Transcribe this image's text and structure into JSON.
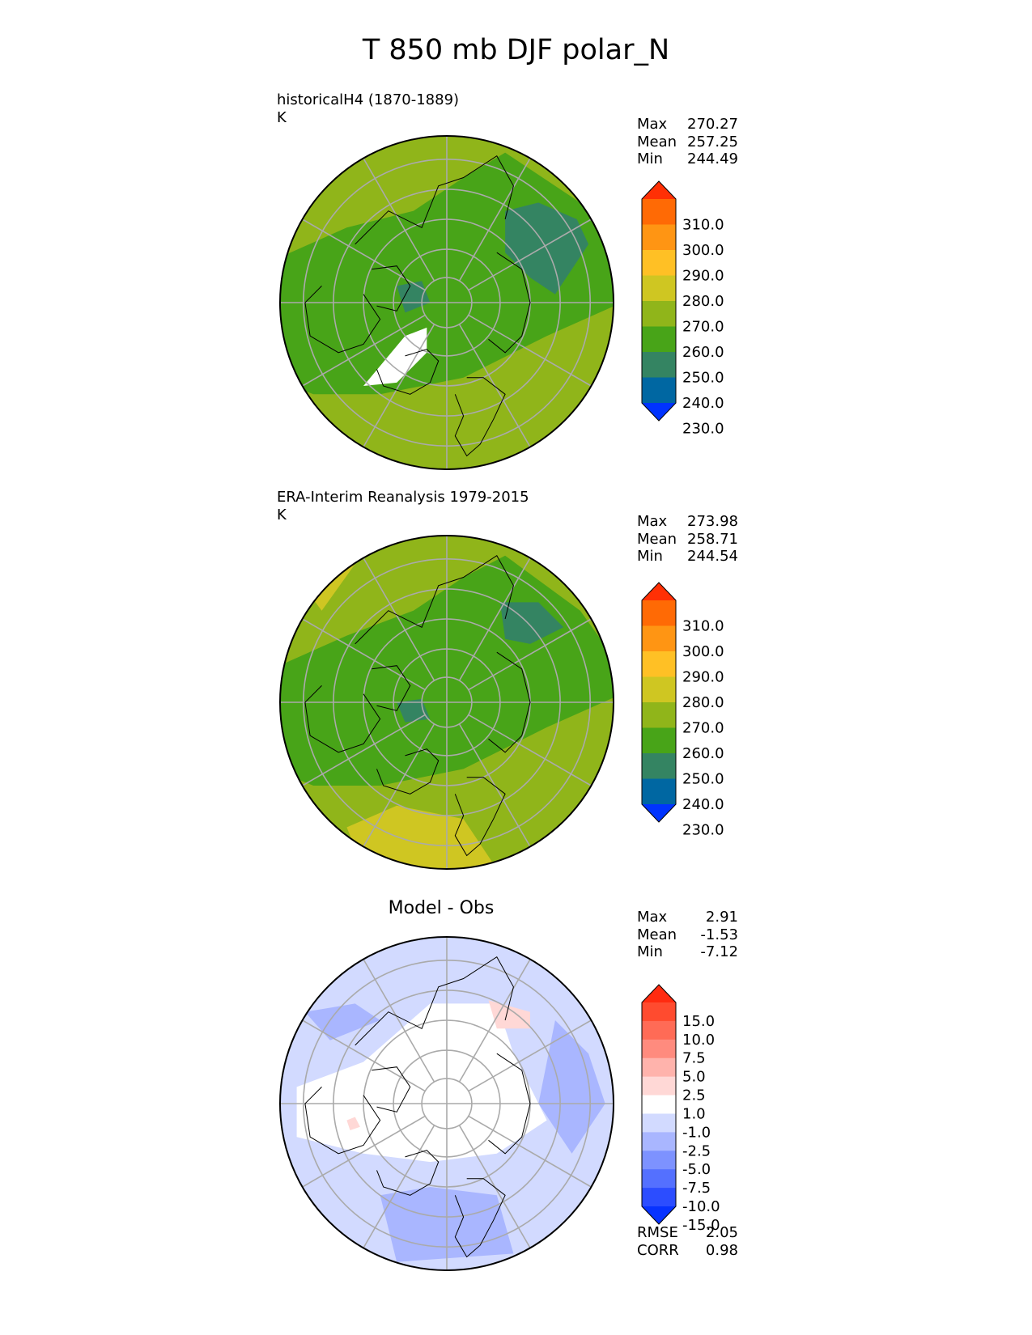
{
  "title": "T 850 mb DJF polar_N",
  "colors": {
    "land_outline": "#000000",
    "grid": "#aaaaaa",
    "abs_levels": [
      "#0033ff",
      "#0067a2",
      "#348462",
      "#48a418",
      "#90b51a",
      "#cfc622",
      "#ffc025",
      "#ff9513",
      "#ff6a05",
      "#ff3005"
    ],
    "diff_levels": [
      "#0732ff",
      "#2c4dff",
      "#5470ff",
      "#7d92ff",
      "#a9b6ff",
      "#d2daff",
      "#ffffff",
      "#ffd8d6",
      "#ffb3ac",
      "#ff8b7e",
      "#ff6b56",
      "#ff4b2f",
      "#ff2b10"
    ]
  },
  "panels": [
    {
      "id": "model",
      "title": "historicalH4 (1870-1889)",
      "units": "K",
      "stats": [
        {
          "label": "Max",
          "value": "270.27"
        },
        {
          "label": "Mean",
          "value": "257.25"
        },
        {
          "label": "Min",
          "value": "244.49"
        }
      ],
      "colorbar_ticks": [
        "310.0",
        "300.0",
        "290.0",
        "280.0",
        "270.0",
        "260.0",
        "250.0",
        "240.0",
        "230.0"
      ]
    },
    {
      "id": "obs",
      "title": "ERA-Interim Reanalysis 1979-2015",
      "units": "K",
      "stats": [
        {
          "label": "Max",
          "value": "273.98"
        },
        {
          "label": "Mean",
          "value": "258.71"
        },
        {
          "label": "Min",
          "value": "244.54"
        }
      ],
      "colorbar_ticks": [
        "310.0",
        "300.0",
        "290.0",
        "280.0",
        "270.0",
        "260.0",
        "250.0",
        "240.0",
        "230.0"
      ]
    },
    {
      "id": "diff",
      "title": "Model - Obs",
      "stats": [
        {
          "label": "Max",
          "value": "2.91"
        },
        {
          "label": "Mean",
          "value": "-1.53"
        },
        {
          "label": "Min",
          "value": "-7.12"
        }
      ],
      "colorbar_ticks": [
        "15.0",
        "10.0",
        "7.5",
        "5.0",
        "2.5",
        "1.0",
        "-1.0",
        "-2.5",
        "-5.0",
        "-7.5",
        "-10.0",
        "-15.0"
      ],
      "metrics": [
        {
          "label": "RMSE",
          "value": "2.05"
        },
        {
          "label": "CORR",
          "value": "0.98"
        }
      ]
    }
  ],
  "chart_data": {
    "type": "heatmap",
    "projection": "north polar stereographic",
    "variable": "T 850 mb",
    "season": "DJF",
    "grid": true,
    "panels": [
      {
        "name": "historicalH4 (1870-1889)",
        "units": "K",
        "max": 270.27,
        "mean": 257.25,
        "min": 244.49,
        "levels": [
          230,
          240,
          250,
          260,
          270,
          280,
          290,
          300,
          310
        ],
        "extend": "both"
      },
      {
        "name": "ERA-Interim Reanalysis 1979-2015",
        "units": "K",
        "max": 273.98,
        "mean": 258.71,
        "min": 244.54,
        "levels": [
          230,
          240,
          250,
          260,
          270,
          280,
          290,
          300,
          310
        ],
        "extend": "both"
      },
      {
        "name": "Model - Obs",
        "max": 2.91,
        "mean": -1.53,
        "min": -7.12,
        "levels": [
          -15,
          -10,
          -7.5,
          -5,
          -2.5,
          -1,
          1,
          2.5,
          5,
          7.5,
          10,
          15
        ],
        "extend": "both",
        "rmse": 2.05,
        "corr": 0.98
      }
    ]
  }
}
